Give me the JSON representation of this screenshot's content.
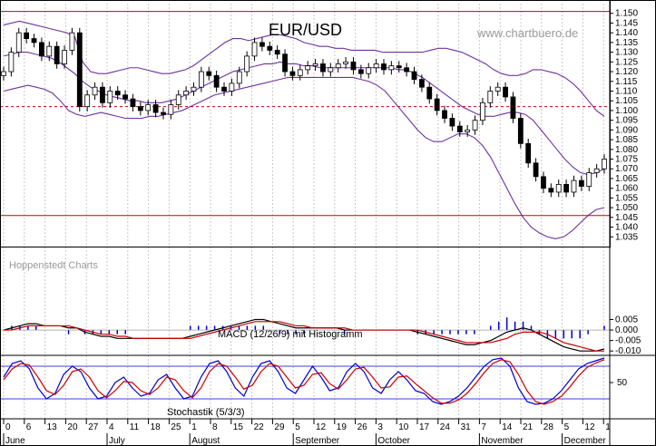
{
  "colors": {
    "grid": "#c8c8c8",
    "band": "#7030a0",
    "candle": "#000000",
    "redline": "#cc0000",
    "hist": "#0000cc",
    "macd": "#000000",
    "signal": "#cc0000",
    "stoch_k": "#0000cc",
    "stoch_d": "#cc0000",
    "border": "#000000"
  },
  "chart_data": {
    "type": "candlestick",
    "title": "EUR/USD",
    "watermark": "www.chartbuero.de",
    "source_label": "Hoppenstedt Charts",
    "price_axis": {
      "ylim": [
        1.03,
        1.155
      ],
      "ticks": [
        "1.150",
        "1.145",
        "1.140",
        "1.135",
        "1.130",
        "1.125",
        "1.120",
        "1.115",
        "1.110",
        "1.105",
        "1.100",
        "1.095",
        "1.090",
        "1.085",
        "1.080",
        "1.075",
        "1.070",
        "1.065",
        "1.060",
        "1.055",
        "1.050",
        "1.045",
        "1.040",
        "1.035"
      ]
    },
    "horizontal_levels": [
      1.151,
      1.102,
      1.046
    ],
    "x_day_labels": [
      "0",
      "6",
      "13",
      "20",
      "27",
      "4",
      "11",
      "18",
      "25",
      "1",
      "8",
      "15",
      "22",
      "29",
      "5",
      "12",
      "19",
      "26",
      "3",
      "10",
      "17",
      "24",
      "31",
      "7",
      "14",
      "21",
      "28",
      "5",
      "12",
      "1"
    ],
    "x_month_labels": [
      "June",
      "July",
      "August",
      "September",
      "October",
      "November",
      "December"
    ],
    "candles_close": [
      1.12,
      1.13,
      1.14,
      1.137,
      1.135,
      1.128,
      1.133,
      1.124,
      1.131,
      1.14,
      1.102,
      1.108,
      1.112,
      1.104,
      1.11,
      1.108,
      1.106,
      1.102,
      1.1,
      1.103,
      1.099,
      1.098,
      1.103,
      1.108,
      1.11,
      1.112,
      1.12,
      1.118,
      1.112,
      1.11,
      1.114,
      1.12,
      1.128,
      1.135,
      1.133,
      1.131,
      1.129,
      1.12,
      1.118,
      1.121,
      1.123,
      1.124,
      1.12,
      1.122,
      1.124,
      1.125,
      1.121,
      1.119,
      1.122,
      1.124,
      1.121,
      1.123,
      1.122,
      1.12,
      1.116,
      1.112,
      1.106,
      1.1,
      1.096,
      1.092,
      1.089,
      1.09,
      1.095,
      1.104,
      1.11,
      1.112,
      1.107,
      1.096,
      1.083,
      1.073,
      1.066,
      1.06,
      1.058,
      1.062,
      1.058,
      1.064,
      1.061,
      1.068,
      1.07,
      1.075
    ],
    "bollinger_upper": [
      1.144,
      1.145,
      1.146,
      1.145,
      1.144,
      1.143,
      1.142,
      1.141,
      1.14,
      1.138,
      1.125,
      1.12,
      1.119,
      1.119,
      1.12,
      1.121,
      1.122,
      1.122,
      1.121,
      1.12,
      1.119,
      1.119,
      1.12,
      1.121,
      1.123,
      1.126,
      1.129,
      1.132,
      1.135,
      1.137,
      1.137,
      1.136,
      1.137,
      1.138,
      1.139,
      1.139,
      1.138,
      1.137,
      1.135,
      1.134,
      1.133,
      1.133,
      1.132,
      1.132,
      1.131,
      1.131,
      1.131,
      1.131,
      1.13,
      1.13,
      1.13,
      1.13,
      1.13,
      1.13,
      1.131,
      1.132,
      1.132,
      1.131,
      1.13,
      1.128,
      1.126,
      1.124,
      1.121,
      1.119,
      1.118,
      1.118,
      1.119,
      1.121,
      1.121,
      1.12,
      1.119,
      1.117,
      1.114,
      1.11,
      1.105,
      1.1,
      1.097
    ],
    "bollinger_middle": [
      1.128,
      1.129,
      1.13,
      1.13,
      1.129,
      1.128,
      1.127,
      1.125,
      1.122,
      1.119,
      1.115,
      1.112,
      1.11,
      1.108,
      1.107,
      1.106,
      1.105,
      1.105,
      1.104,
      1.104,
      1.104,
      1.105,
      1.106,
      1.108,
      1.11,
      1.112,
      1.114,
      1.116,
      1.118,
      1.12,
      1.121,
      1.122,
      1.123,
      1.124,
      1.124,
      1.125,
      1.124,
      1.124,
      1.123,
      1.123,
      1.122,
      1.122,
      1.122,
      1.122,
      1.122,
      1.122,
      1.122,
      1.122,
      1.122,
      1.122,
      1.121,
      1.121,
      1.119,
      1.117,
      1.114,
      1.111,
      1.108,
      1.105,
      1.102,
      1.1,
      1.098,
      1.097,
      1.097,
      1.098,
      1.099,
      1.099,
      1.098,
      1.095,
      1.09,
      1.085,
      1.08,
      1.075,
      1.071,
      1.068,
      1.067,
      1.068,
      1.07
    ],
    "bollinger_lower": [
      1.11,
      1.111,
      1.112,
      1.113,
      1.112,
      1.111,
      1.109,
      1.105,
      1.1,
      1.098,
      1.097,
      1.098,
      1.099,
      1.098,
      1.097,
      1.096,
      1.096,
      1.096,
      1.097,
      1.097,
      1.098,
      1.099,
      1.1,
      1.102,
      1.104,
      1.106,
      1.108,
      1.109,
      1.11,
      1.111,
      1.112,
      1.113,
      1.114,
      1.115,
      1.116,
      1.117,
      1.117,
      1.117,
      1.117,
      1.117,
      1.117,
      1.117,
      1.117,
      1.117,
      1.116,
      1.115,
      1.113,
      1.11,
      1.105,
      1.1,
      1.095,
      1.09,
      1.086,
      1.084,
      1.084,
      1.086,
      1.088,
      1.088,
      1.086,
      1.082,
      1.076,
      1.068,
      1.06,
      1.052,
      1.045,
      1.04,
      1.037,
      1.035,
      1.034,
      1.035,
      1.038,
      1.042,
      1.046,
      1.049,
      1.05
    ],
    "macd": {
      "label": "MACD (12/26/9) mit Histogramm",
      "ticks": [
        "0.005",
        "0.000",
        "-0.005",
        "-0.010"
      ],
      "ylim": [
        -0.0125,
        0.0065
      ],
      "macd_line": [
        0.0,
        0.001,
        0.002,
        0.003,
        0.003,
        0.002,
        0.002,
        0.002,
        0.001,
        0.001,
        -0.001,
        -0.002,
        -0.003,
        -0.003,
        -0.004,
        -0.004,
        -0.004,
        -0.004,
        -0.004,
        -0.004,
        -0.004,
        -0.004,
        -0.004,
        -0.003,
        -0.002,
        -0.001,
        0.0,
        0.001,
        0.002,
        0.003,
        0.004,
        0.005,
        0.005,
        0.004,
        0.003,
        0.002,
        0.001,
        0.001,
        0.001,
        0.001,
        0.001,
        0.001,
        0.0,
        0.0,
        0.0,
        0.0,
        0.0,
        0.0,
        0.0,
        0.0,
        0.0,
        -0.001,
        -0.002,
        -0.003,
        -0.004,
        -0.005,
        -0.006,
        -0.007,
        -0.007,
        -0.006,
        -0.005,
        -0.003,
        -0.001,
        0.0,
        0.001,
        0.0,
        -0.002,
        -0.004,
        -0.006,
        -0.008,
        -0.009,
        -0.01,
        -0.01,
        -0.01,
        -0.009
      ],
      "signal_line": [
        0.0,
        0.0,
        0.001,
        0.002,
        0.002,
        0.002,
        0.002,
        0.002,
        0.002,
        0.001,
        0.0,
        -0.001,
        -0.002,
        -0.002,
        -0.003,
        -0.003,
        -0.004,
        -0.004,
        -0.004,
        -0.004,
        -0.004,
        -0.004,
        -0.004,
        -0.004,
        -0.003,
        -0.002,
        -0.001,
        0.0,
        0.001,
        0.002,
        0.003,
        0.004,
        0.004,
        0.004,
        0.004,
        0.003,
        0.002,
        0.002,
        0.001,
        0.001,
        0.001,
        0.001,
        0.001,
        0.0,
        0.0,
        0.0,
        0.0,
        0.0,
        0.0,
        0.0,
        0.0,
        0.0,
        -0.001,
        -0.002,
        -0.003,
        -0.004,
        -0.005,
        -0.006,
        -0.006,
        -0.006,
        -0.006,
        -0.005,
        -0.004,
        -0.002,
        -0.001,
        -0.001,
        -0.001,
        -0.002,
        -0.004,
        -0.006,
        -0.007,
        -0.008,
        -0.009,
        -0.01,
        -0.01
      ]
    },
    "stochastic": {
      "label": "Stochastik (5/3/3)",
      "ticks": [
        "50"
      ],
      "ylim": [
        0,
        100
      ],
      "k_line": [
        60,
        85,
        90,
        75,
        40,
        20,
        30,
        65,
        80,
        70,
        40,
        20,
        25,
        50,
        60,
        40,
        25,
        30,
        55,
        65,
        40,
        20,
        25,
        60,
        85,
        90,
        70,
        40,
        25,
        60,
        85,
        90,
        70,
        40,
        30,
        55,
        80,
        60,
        35,
        40,
        70,
        85,
        70,
        40,
        30,
        55,
        70,
        55,
        35,
        30,
        15,
        10,
        15,
        25,
        40,
        60,
        80,
        92,
        95,
        80,
        40,
        15,
        10,
        12,
        20,
        35,
        55,
        75,
        85,
        90,
        95
      ],
      "d_line": [
        55,
        75,
        85,
        82,
        60,
        35,
        28,
        45,
        70,
        75,
        60,
        35,
        22,
        35,
        52,
        50,
        35,
        28,
        40,
        60,
        55,
        35,
        22,
        40,
        70,
        85,
        80,
        60,
        38,
        45,
        70,
        85,
        80,
        60,
        40,
        45,
        65,
        68,
        48,
        38,
        55,
        75,
        78,
        60,
        40,
        42,
        60,
        62,
        48,
        35,
        22,
        12,
        12,
        18,
        30,
        48,
        68,
        85,
        92,
        88,
        65,
        35,
        15,
        10,
        15,
        25,
        42,
        62,
        78,
        86,
        92
      ]
    }
  }
}
